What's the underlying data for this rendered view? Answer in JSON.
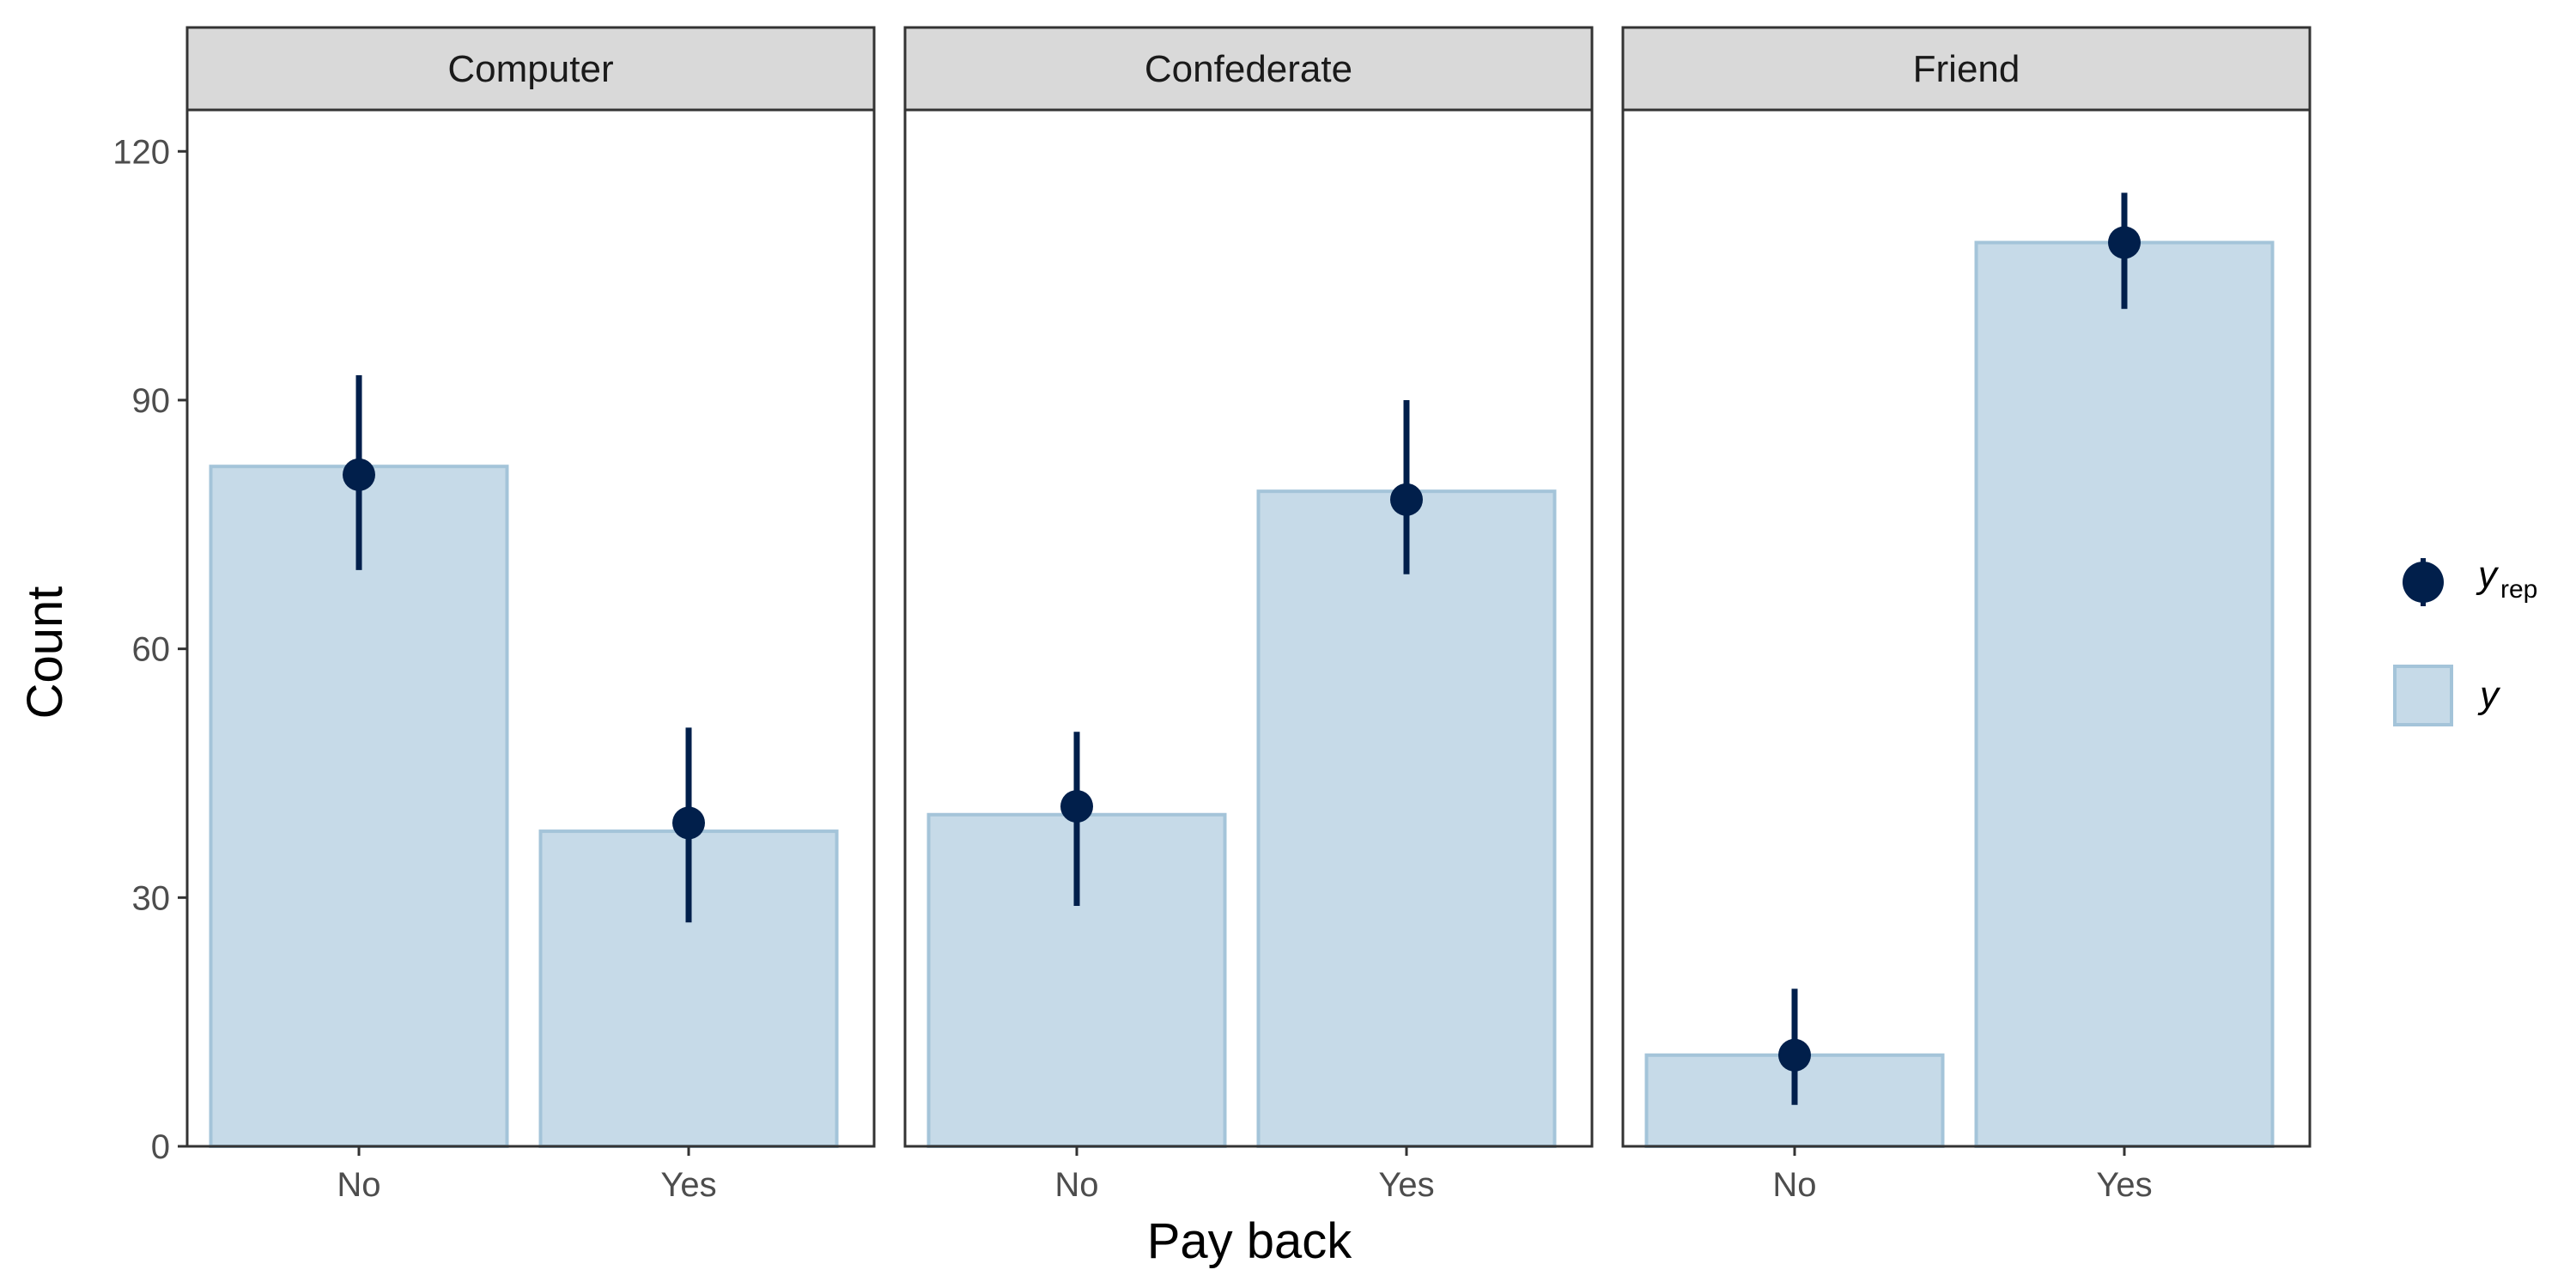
{
  "chart_data": {
    "type": "bar",
    "facets": [
      "Computer",
      "Confederate",
      "Friend"
    ],
    "categories": [
      "No",
      "Yes"
    ],
    "series": [
      {
        "name": "y",
        "kind": "bar",
        "values": {
          "Computer": [
            82,
            38
          ],
          "Confederate": [
            40,
            79
          ],
          "Friend": [
            11,
            109
          ]
        }
      },
      {
        "name": "y_rep",
        "kind": "pointrange",
        "values": {
          "Computer": [
            81,
            39
          ],
          "Confederate": [
            41,
            78
          ],
          "Friend": [
            11,
            109
          ]
        },
        "lower": {
          "Computer": [
            69.5,
            27
          ],
          "Confederate": [
            29,
            69
          ],
          "Friend": [
            5,
            101
          ]
        },
        "upper": {
          "Computer": [
            93,
            50.5
          ],
          "Confederate": [
            50,
            90
          ],
          "Friend": [
            19,
            115
          ]
        }
      }
    ],
    "xlabel": "Pay back",
    "ylabel": "Count",
    "ylim": [
      0,
      125
    ],
    "yticks": [
      0,
      30,
      60,
      90,
      120
    ],
    "legend": {
      "position": "right",
      "items": [
        {
          "base": "y",
          "sub": "rep"
        },
        {
          "base": "y",
          "sub": ""
        }
      ]
    },
    "colors": {
      "bar_fill": "#c6dae8",
      "bar_stroke": "#a4c4d9",
      "point": "#011f4b",
      "strip_fill": "#d9d9d9",
      "frame": "#333333"
    }
  }
}
